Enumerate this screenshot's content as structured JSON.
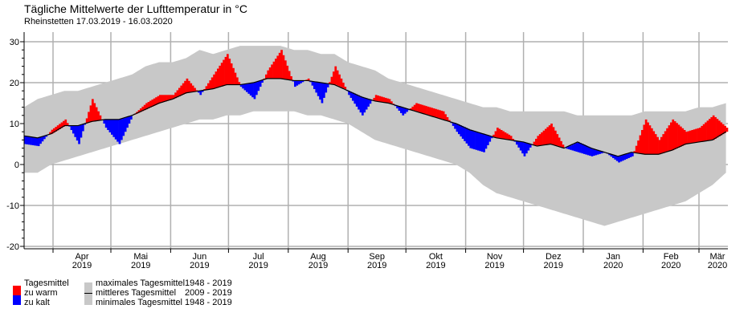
{
  "chart_data": {
    "type": "area",
    "title": "Tägliche Mittelwerte der Lufttemperatur in °C",
    "subtitle": "Rheinstetten  17.03.2019 - 16.03.2020",
    "ylim": [
      -21,
      32
    ],
    "yticks": [
      -20,
      -10,
      0,
      10,
      20,
      30
    ],
    "xlabel": "",
    "ylabel": "",
    "grid": true,
    "x_sampling": "weekly from 17.03.2019",
    "month_labels": [
      [
        "Apr",
        "2019"
      ],
      [
        "Mai",
        "2019"
      ],
      [
        "Jun",
        "2019"
      ],
      [
        "Jul",
        "2019"
      ],
      [
        "Aug",
        "2019"
      ],
      [
        "Sep",
        "2019"
      ],
      [
        "Okt",
        "2019"
      ],
      [
        "Nov",
        "2019"
      ],
      [
        "Dez",
        "2019"
      ],
      [
        "Jan",
        "2020"
      ],
      [
        "Feb",
        "2020"
      ],
      [
        "Mär",
        "2020"
      ]
    ],
    "series": [
      {
        "name": "Tagesmittel",
        "values": [
          5,
          4.5,
          8.5,
          11,
          5,
          16,
          9,
          5,
          12,
          15,
          17,
          17,
          21,
          17,
          22,
          27,
          19,
          16,
          23,
          28,
          19,
          21,
          15,
          24,
          17,
          12,
          17,
          16,
          12,
          15,
          14,
          13,
          8,
          4,
          3,
          9,
          7,
          2,
          7,
          10,
          4,
          3,
          2,
          3,
          0.5,
          2,
          11,
          6,
          11,
          8,
          9,
          12,
          9
        ]
      },
      {
        "name": "mittleres Tagesmittel",
        "values": [
          7,
          6.5,
          7.5,
          9.5,
          9.5,
          10.5,
          11,
          11,
          12,
          13.5,
          15,
          16,
          17.5,
          18,
          18.5,
          19.5,
          19.5,
          20,
          21,
          21,
          20.5,
          20.5,
          20,
          19.5,
          18,
          16.5,
          15.5,
          15,
          14,
          13,
          12,
          11,
          10,
          8.5,
          7.5,
          6.5,
          6,
          5.5,
          4.5,
          5,
          4,
          5.5,
          4,
          3,
          2,
          3,
          2.5,
          2.5,
          3.5,
          5,
          5.5,
          6,
          8
        ]
      },
      {
        "name": "maximales Tagesmittel",
        "values": [
          14,
          16,
          17,
          18,
          18,
          19,
          20,
          21,
          22,
          24,
          25,
          25,
          26,
          28,
          27,
          28,
          29,
          29,
          29,
          29,
          28,
          28,
          27,
          27,
          25,
          24,
          23,
          21,
          20,
          19,
          18,
          17,
          16,
          15,
          14,
          14,
          13,
          13,
          13,
          13,
          13,
          12,
          12,
          12,
          12,
          12,
          13,
          13,
          13,
          13,
          14,
          14,
          15
        ]
      },
      {
        "name": "minimales Tagesmittel",
        "values": [
          -2,
          -2,
          0,
          1,
          2,
          3,
          4,
          5,
          6,
          7,
          8,
          9,
          10,
          11,
          11,
          12,
          12,
          13,
          13,
          13,
          13,
          12,
          12,
          11,
          10,
          8,
          6,
          5,
          4,
          3,
          2,
          1,
          0,
          -2,
          -5,
          -7,
          -8,
          -9,
          -10,
          -11,
          -12,
          -13,
          -14,
          -15,
          -14,
          -13,
          -12,
          -11,
          -10,
          -9,
          -7,
          -5,
          -2
        ]
      }
    ],
    "colors": {
      "warm": "#ff0000",
      "cold": "#0000ff",
      "band": "#c8c8c8",
      "mean": "#000000",
      "grid": "#b0b0b0"
    }
  },
  "legend": {
    "tagesmittel": "Tagesmittel",
    "warm": "zu warm",
    "cold": "zu kalt",
    "max": "maximales Tagesmittel",
    "max_years": "1948 - 2019",
    "mean": "mittleres Tagesmittel",
    "mean_years": "2009 - 2019",
    "min": "minimales Tagesmittel",
    "min_years": "1948 - 2019"
  }
}
